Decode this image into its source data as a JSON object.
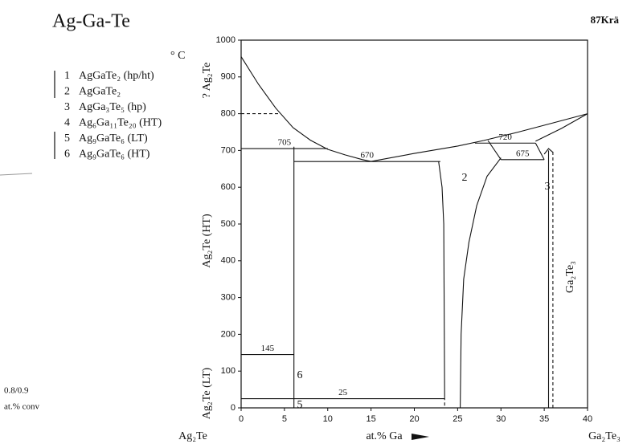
{
  "chart_data": {
    "type": "phase-diagram",
    "title": "Ag-Ga-Te",
    "reference": "87Krä",
    "unit": "° C",
    "xlabel": "at.% Ga",
    "x_end_labels": [
      "Ag₂Te",
      "Ga₂Te₃"
    ],
    "side_labels": [
      "? Ag₂Te",
      "Ag₂Te (HT)",
      "Ag₂Te (LT)",
      "Ga₂Te₃"
    ],
    "note": [
      "0.8/0.9",
      "at.% conv"
    ],
    "legend": [
      {
        "number": "1",
        "formula": "AgGaTe₂ (hp/ht)"
      },
      {
        "number": "2",
        "formula": "AgGaTe₂"
      },
      {
        "number": "3",
        "formula": "AgGa₃Te₅ (hp)"
      },
      {
        "number": "4",
        "formula": "Ag₆Ga₁₁Te₂₀ (HT)"
      },
      {
        "number": "5",
        "formula": "Ag₉GaTe₆ (LT)"
      },
      {
        "number": "6",
        "formula": "Ag₉GaTe₆ (HT)"
      }
    ],
    "phase_labels": [
      "2",
      "3",
      "5",
      "6"
    ],
    "xlim": [
      0,
      40
    ],
    "ylim": [
      0,
      1000
    ],
    "xticks": [
      0,
      5,
      10,
      15,
      20,
      25,
      30,
      35,
      40
    ],
    "yticks": [
      0,
      100,
      200,
      300,
      400,
      500,
      600,
      700,
      800,
      900,
      1000
    ],
    "isotherms": [
      {
        "value": 705,
        "from": 0,
        "to": 10
      },
      {
        "value": 670,
        "from": 6.1,
        "to": 23
      },
      {
        "value": 720,
        "from": 27,
        "to": 34
      },
      {
        "value": 675,
        "from": 30,
        "to": 35
      },
      {
        "value": 145,
        "from": 0,
        "to": 6.1
      },
      {
        "value": 25,
        "from": 0,
        "to": 23.5
      }
    ],
    "boundaries": [
      {
        "x": [
          0,
          2,
          4,
          6,
          8,
          10,
          12,
          14,
          15
        ],
        "y": [
          955,
          880,
          815,
          762,
          728,
          703,
          688,
          675,
          670
        ],
        "dashed": false
      },
      {
        "x": [
          15,
          20,
          25,
          28,
          32,
          36,
          40
        ],
        "y": [
          670,
          692,
          712,
          727,
          750,
          775,
          800
        ],
        "dashed": false
      },
      {
        "x": [
          34,
          37,
          40
        ],
        "y": [
          725,
          760,
          800
        ],
        "dashed": false
      },
      {
        "x": [
          6.1,
          6.1
        ],
        "y": [
          0,
          710
        ],
        "dashed": false
      },
      {
        "x": [
          22.8,
          23.2,
          23.4,
          23.5
        ],
        "y": [
          670,
          600,
          500,
          30
        ],
        "dashed": false
      },
      {
        "x": [
          23.5,
          23.5
        ],
        "y": [
          30,
          0
        ],
        "dashed": true
      },
      {
        "x": [
          25.3,
          25.4,
          25.7,
          26.3,
          27.2,
          28.4,
          30
        ],
        "y": [
          0,
          200,
          350,
          450,
          550,
          630,
          680
        ],
        "dashed": false
      },
      {
        "x": [
          30,
          28.5
        ],
        "y": [
          675,
          727
        ],
        "dashed": false
      },
      {
        "x": [
          35,
          34
        ],
        "y": [
          675,
          720
        ],
        "dashed": false
      },
      {
        "x": [
          35.5,
          35.5
        ],
        "y": [
          0,
          700
        ],
        "dashed": false
      },
      {
        "x": [
          36,
          36
        ],
        "y": [
          0,
          700
        ],
        "dashed": true
      },
      {
        "x": [
          35,
          35.5,
          36
        ],
        "y": [
          690,
          705,
          695
        ],
        "dashed": false
      },
      {
        "x": [
          0,
          4.5
        ],
        "y": [
          800,
          800
        ],
        "dashed": true
      }
    ]
  }
}
